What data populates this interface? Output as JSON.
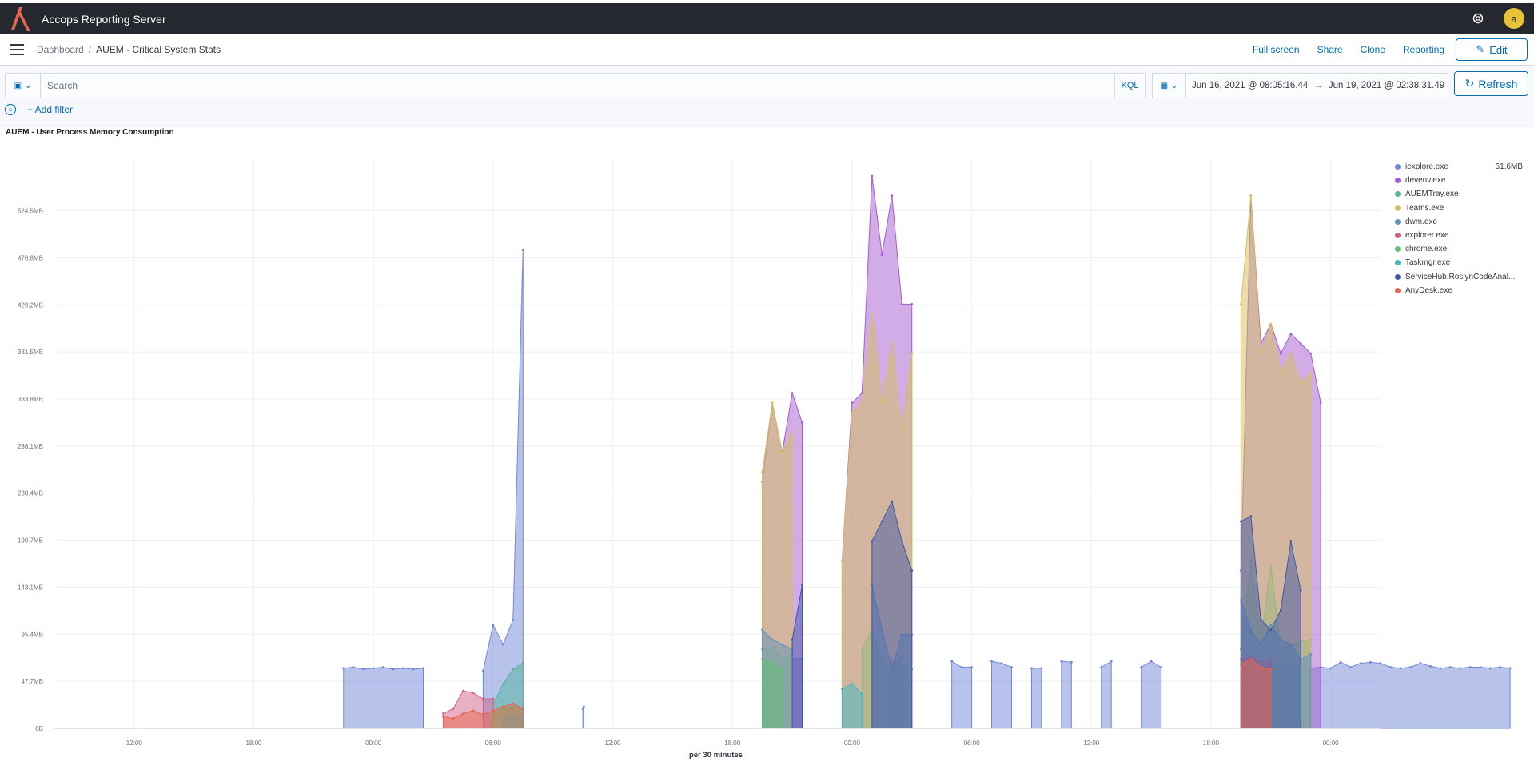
{
  "app": {
    "title": "Accops Reporting Server",
    "avatar_letter": "a"
  },
  "breadcrumb": {
    "root": "Dashboard",
    "current": "AUEM - Critical System Stats"
  },
  "nav": {
    "full_screen": "Full screen",
    "share": "Share",
    "clone": "Clone",
    "reporting": "Reporting",
    "edit": "Edit"
  },
  "query": {
    "placeholder": "Search",
    "language": "KQL"
  },
  "time": {
    "start": "Jun 16, 2021 @ 08:05:16.44",
    "arrow": "→",
    "end": "Jun 19, 2021 @ 02:38:31.49",
    "refresh": "Refresh"
  },
  "filter": {
    "add_label": "+ Add filter"
  },
  "panel": {
    "title": "AUEM - User Process Memory Consumption"
  },
  "chart_data": {
    "type": "area",
    "xlabel": "per 30 minutes",
    "ylabel": "",
    "x_range": [
      "Jun 16, 2021 @ 08:05",
      "Jun 19, 2021 @ 02:38"
    ],
    "x_ticks": [
      "12:00",
      "18:00",
      "00:00",
      "06:00",
      "12:00",
      "18:00",
      "00:00",
      "06:00",
      "12:00",
      "18:00",
      "00:00"
    ],
    "y_ticks": [
      "0B",
      "47.7MB",
      "95.4MB",
      "143.1MB",
      "190.7MB",
      "238.4MB",
      "286.1MB",
      "333.8MB",
      "381.5MB",
      "429.2MB",
      "476.8MB",
      "524.5MB"
    ],
    "ylim_mb": [
      0,
      560
    ],
    "grid": true,
    "legend_position": "right",
    "series": [
      {
        "name": "iexplore.exe",
        "color": "#6f87d8",
        "legend_value": "61.6MB",
        "segments": [
          [
            [
              14.5,
              61
            ],
            [
              15,
              62
            ],
            [
              15.5,
              60
            ],
            [
              16,
              61
            ],
            [
              16.5,
              62
            ],
            [
              17,
              60
            ],
            [
              17.5,
              61
            ],
            [
              18,
              60
            ],
            [
              18.5,
              61
            ]
          ],
          [
            [
              21.5,
              58
            ],
            [
              22,
              105
            ],
            [
              22.5,
              85
            ],
            [
              23,
              110
            ],
            [
              23.5,
              485
            ]
          ],
          [
            [
              26.5,
              20
            ],
            [
              26.55,
              22
            ]
          ],
          [
            [
              37,
              70
            ],
            [
              37.5,
              71
            ]
          ],
          [
            [
              42,
              70
            ],
            [
              42.5,
              71
            ]
          ],
          [
            [
              45,
              68
            ],
            [
              45.5,
              62
            ],
            [
              46,
              62
            ]
          ],
          [
            [
              47,
              68
            ],
            [
              47.5,
              66
            ],
            [
              48,
              62
            ]
          ],
          [
            [
              49,
              61
            ],
            [
              49.5,
              61
            ]
          ],
          [
            [
              50.5,
              68
            ],
            [
              51,
              67
            ]
          ],
          [
            [
              52.5,
              62
            ],
            [
              53,
              68
            ]
          ],
          [
            [
              54.5,
              62
            ],
            [
              55,
              68
            ],
            [
              55.5,
              62
            ]
          ],
          [
            [
              61,
              65
            ],
            [
              61.5,
              62
            ],
            [
              62,
              61
            ],
            [
              62.5,
              62
            ],
            [
              63,
              61
            ],
            [
              63.5,
              62
            ],
            [
              64,
              61
            ],
            [
              64.5,
              67
            ],
            [
              65,
              62
            ],
            [
              65.5,
              66
            ],
            [
              66,
              67
            ],
            [
              66.5,
              66
            ],
            [
              67,
              62
            ],
            [
              67.5,
              61
            ],
            [
              68,
              62
            ],
            [
              68.5,
              66
            ],
            [
              69,
              63
            ],
            [
              69.5,
              61
            ],
            [
              70,
              62
            ],
            [
              70.5,
              61
            ],
            [
              71,
              62
            ],
            [
              71.5,
              62
            ],
            [
              72,
              61
            ],
            [
              72.5,
              62
            ],
            [
              73,
              61
            ]
          ]
        ]
      },
      {
        "name": "devenv.exe",
        "color": "#a45ad0",
        "segments": [
          [
            [
              35.5,
              250
            ],
            [
              36,
              330
            ],
            [
              36.5,
              280
            ],
            [
              37,
              340
            ],
            [
              37.5,
              310
            ]
          ],
          [
            [
              39.5,
              170
            ],
            [
              40,
              330
            ],
            [
              40.5,
              340
            ],
            [
              41,
              560
            ],
            [
              41.5,
              480
            ],
            [
              42,
              540
            ],
            [
              42.5,
              430
            ],
            [
              43,
              430
            ]
          ],
          [
            [
              59.5,
              160
            ],
            [
              60,
              540
            ],
            [
              60.5,
              390
            ],
            [
              61,
              410
            ],
            [
              61.5,
              380
            ],
            [
              62,
              400
            ],
            [
              62.5,
              390
            ],
            [
              63,
              380
            ],
            [
              63.5,
              330
            ]
          ]
        ]
      },
      {
        "name": "AUEMTray.exe",
        "color": "#54b399",
        "segments": [
          [
            [
              22,
              25
            ],
            [
              22.5,
              45
            ],
            [
              23,
              60
            ],
            [
              23.5,
              66
            ]
          ],
          [
            [
              35.5,
              80
            ],
            [
              36,
              82
            ],
            [
              36.5,
              70
            ],
            [
              37,
              75
            ]
          ],
          [
            [
              40.5,
              80
            ],
            [
              41,
              100
            ],
            [
              41.5,
              70
            ],
            [
              42,
              60
            ],
            [
              42.5,
              65
            ],
            [
              43,
              60
            ]
          ],
          [
            [
              59.5,
              80
            ],
            [
              60,
              170
            ],
            [
              60.5,
              90
            ],
            [
              61,
              165
            ],
            [
              61.5,
              80
            ],
            [
              62,
              85
            ],
            [
              62.5,
              88
            ],
            [
              63,
              90
            ]
          ]
        ]
      },
      {
        "name": "Teams.exe",
        "color": "#d6bf57",
        "segments": [
          [
            [
              35.5,
              260
            ],
            [
              36,
              330
            ],
            [
              36.5,
              280
            ],
            [
              37,
              300
            ]
          ],
          [
            [
              39.5,
              170
            ],
            [
              40,
              320
            ],
            [
              40.5,
              330
            ],
            [
              41,
              420
            ],
            [
              41.5,
              330
            ],
            [
              42,
              390
            ],
            [
              42.5,
              300
            ],
            [
              43,
              380
            ]
          ],
          [
            [
              59.5,
              430
            ],
            [
              60,
              540
            ],
            [
              60.5,
              380
            ],
            [
              61,
              410
            ],
            [
              61.5,
              360
            ],
            [
              62,
              380
            ],
            [
              62.5,
              350
            ],
            [
              63,
              360
            ]
          ]
        ]
      },
      {
        "name": "dwm.exe",
        "color": "#6092c0",
        "segments": [
          [
            [
              35.5,
              100
            ],
            [
              36,
              90
            ],
            [
              36.5,
              85
            ],
            [
              37,
              80
            ]
          ],
          [
            [
              41,
              145
            ],
            [
              41.5,
              100
            ],
            [
              42,
              60
            ],
            [
              42.5,
              95
            ],
            [
              43,
              95
            ]
          ],
          [
            [
              59.5,
              130
            ],
            [
              60,
              100
            ],
            [
              60.5,
              85
            ],
            [
              61,
              105
            ],
            [
              61.5,
              90
            ],
            [
              62,
              85
            ],
            [
              62.5,
              70
            ],
            [
              63,
              75
            ]
          ]
        ]
      },
      {
        "name": "explorer.exe",
        "color": "#d36086",
        "segments": [
          [
            [
              19.5,
              15
            ],
            [
              20,
              20
            ],
            [
              20.5,
              38
            ],
            [
              21,
              36
            ],
            [
              21.5,
              30
            ],
            [
              22,
              30
            ]
          ],
          [
            [
              59.5,
              70
            ],
            [
              60,
              72
            ],
            [
              60.5,
              68
            ],
            [
              61,
              70
            ]
          ]
        ]
      },
      {
        "name": "chrome.exe",
        "color": "#61c06f",
        "segments": [
          [
            [
              22,
              15
            ],
            [
              22.5,
              20
            ],
            [
              23,
              22
            ],
            [
              23.5,
              20
            ]
          ],
          [
            [
              35.5,
              70
            ],
            [
              36,
              65
            ],
            [
              36.5,
              60
            ]
          ]
        ]
      },
      {
        "name": "Taskmgr.exe",
        "color": "#40b8c8",
        "segments": [
          [
            [
              22.5,
              10
            ],
            [
              23,
              12
            ],
            [
              23.5,
              11
            ]
          ],
          [
            [
              39.5,
              40
            ],
            [
              40,
              45
            ],
            [
              40.5,
              35
            ]
          ]
        ]
      },
      {
        "name": "ServiceHub.RoslynCodeAnal...",
        "color": "#4157a8",
        "segments": [
          [
            [
              37,
              90
            ],
            [
              37.5,
              145
            ]
          ],
          [
            [
              41,
              190
            ],
            [
              41.5,
              210
            ],
            [
              42,
              230
            ],
            [
              42.5,
              190
            ],
            [
              43,
              160
            ]
          ],
          [
            [
              59.5,
              210
            ],
            [
              60,
              215
            ],
            [
              60.5,
              110
            ],
            [
              61,
              100
            ],
            [
              61.5,
              120
            ],
            [
              62,
              190
            ],
            [
              62.5,
              140
            ]
          ]
        ]
      },
      {
        "name": "AnyDesk.exe",
        "color": "#e7664c",
        "segments": [
          [
            [
              19.5,
              12
            ],
            [
              20,
              10
            ],
            [
              20.5,
              15
            ],
            [
              21,
              18
            ],
            [
              21.5,
              14
            ],
            [
              22,
              18
            ],
            [
              22.5,
              22
            ],
            [
              23,
              25
            ],
            [
              23.5,
              20
            ]
          ],
          [
            [
              59.5,
              65
            ],
            [
              60,
              70
            ],
            [
              60.5,
              62
            ],
            [
              61,
              60
            ]
          ]
        ]
      }
    ],
    "x_hours_note": "x values are hours after Jun 16, 2021 @ 08:00"
  }
}
